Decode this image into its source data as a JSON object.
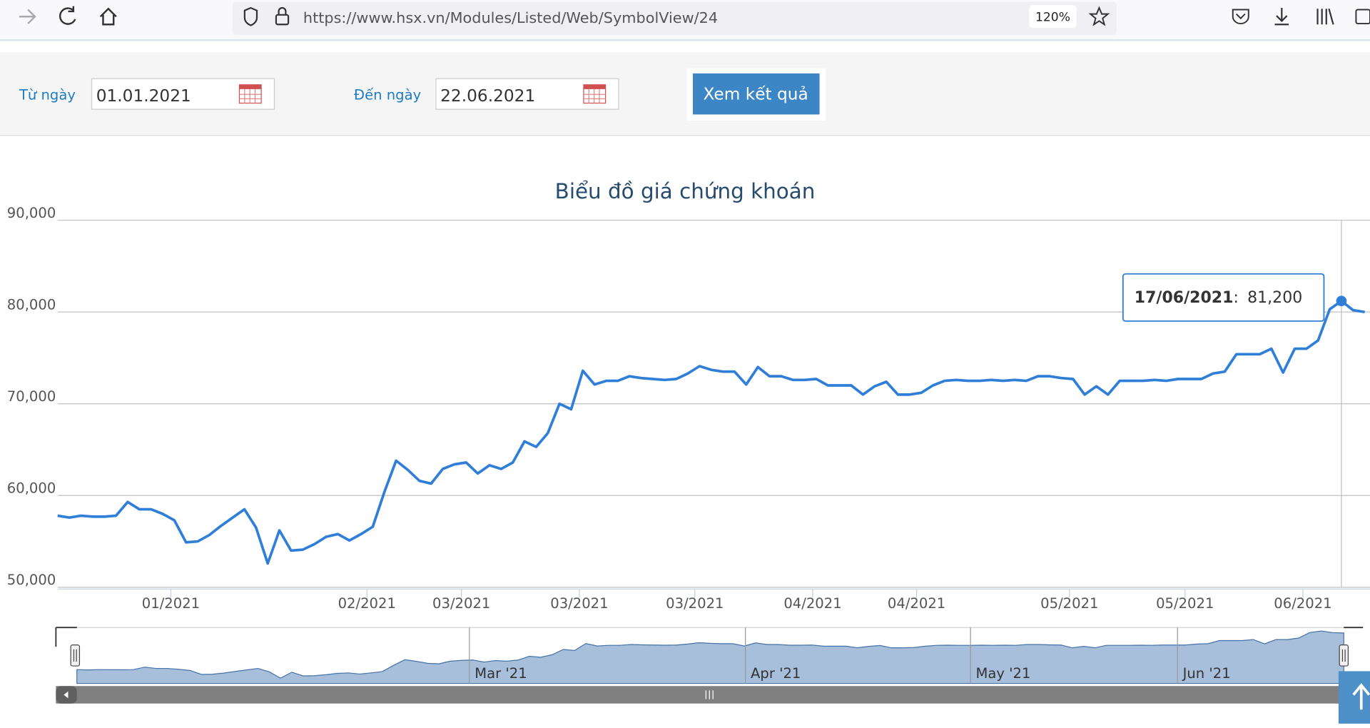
{
  "browser": {
    "url": "https://www.hsx.vn/Modules/Listed/Web/SymbolView/24",
    "zoom": "120%"
  },
  "form": {
    "from_label": "Từ ngày",
    "from_value": "01.01.2021",
    "to_label": "Đến ngày",
    "to_value": "22.06.2021",
    "button": "Xem kết quả"
  },
  "chart_data": {
    "type": "line",
    "title": "Biểu đồ giá chứng khoán",
    "color": "#2f7ed8",
    "grid": true,
    "values": [
      57800,
      57600,
      57800,
      57700,
      57700,
      57800,
      59300,
      58500,
      58500,
      58000,
      57300,
      54900,
      55000,
      55700,
      56700,
      57600,
      58500,
      56500,
      52600,
      56200,
      54000,
      54100,
      54700,
      55500,
      55800,
      55100,
      55800,
      56600,
      60400,
      63800,
      62800,
      61600,
      61300,
      62900,
      63400,
      63600,
      62400,
      63300,
      62900,
      63600,
      65900,
      65300,
      66800,
      70000,
      69400,
      73600,
      72100,
      72500,
      72500,
      73000,
      72800,
      72700,
      72600,
      72700,
      73300,
      74100,
      73700,
      73500,
      73500,
      72100,
      74000,
      73000,
      73000,
      72600,
      72600,
      72700,
      72000,
      72000,
      72000,
      71000,
      71900,
      72400,
      71000,
      71000,
      71200,
      72000,
      72500,
      72600,
      72500,
      72500,
      72600,
      72500,
      72600,
      72500,
      73000,
      73000,
      72800,
      72700,
      71000,
      71900,
      71000,
      72500,
      72500,
      72500,
      72600,
      72500,
      72700,
      72700,
      72700,
      73300,
      73500,
      75400,
      75400,
      75400,
      76000,
      73400,
      76000,
      76000,
      76900,
      80300,
      81200,
      80200,
      80000
    ],
    "ylim": [
      50000,
      90000
    ],
    "yticks": [
      {
        "value": 50000,
        "label": "50,000"
      },
      {
        "value": 60000,
        "label": "60,000"
      },
      {
        "value": 70000,
        "label": "70,000"
      },
      {
        "value": 80000,
        "label": "80,000"
      },
      {
        "value": 90000,
        "label": "90,000"
      }
    ],
    "xticks": [
      {
        "value": 9.7,
        "label": "01/2021"
      },
      {
        "value": 26.5,
        "label": "02/2021"
      },
      {
        "value": 34.6,
        "label": "03/2021"
      },
      {
        "value": 44.7,
        "label": "03/2021"
      },
      {
        "value": 54.6,
        "label": "03/2021"
      },
      {
        "value": 64.7,
        "label": "04/2021"
      },
      {
        "value": 73.6,
        "label": "04/2021"
      },
      {
        "value": 86.7,
        "label": "05/2021"
      },
      {
        "value": 96.6,
        "label": "05/2021"
      },
      {
        "value": 106.7,
        "label": "06/2021"
      }
    ],
    "tooltip": {
      "date": "17/06/2021",
      "separator": ":",
      "value": 81200,
      "value_label": "81,200"
    },
    "navigator_ticks": [
      {
        "value": 34.7,
        "label": "Mar '21"
      },
      {
        "value": 59.1,
        "label": "Apr '21"
      },
      {
        "value": 79.0,
        "label": "May '21"
      },
      {
        "value": 97.3,
        "label": "Jun '21"
      }
    ]
  }
}
